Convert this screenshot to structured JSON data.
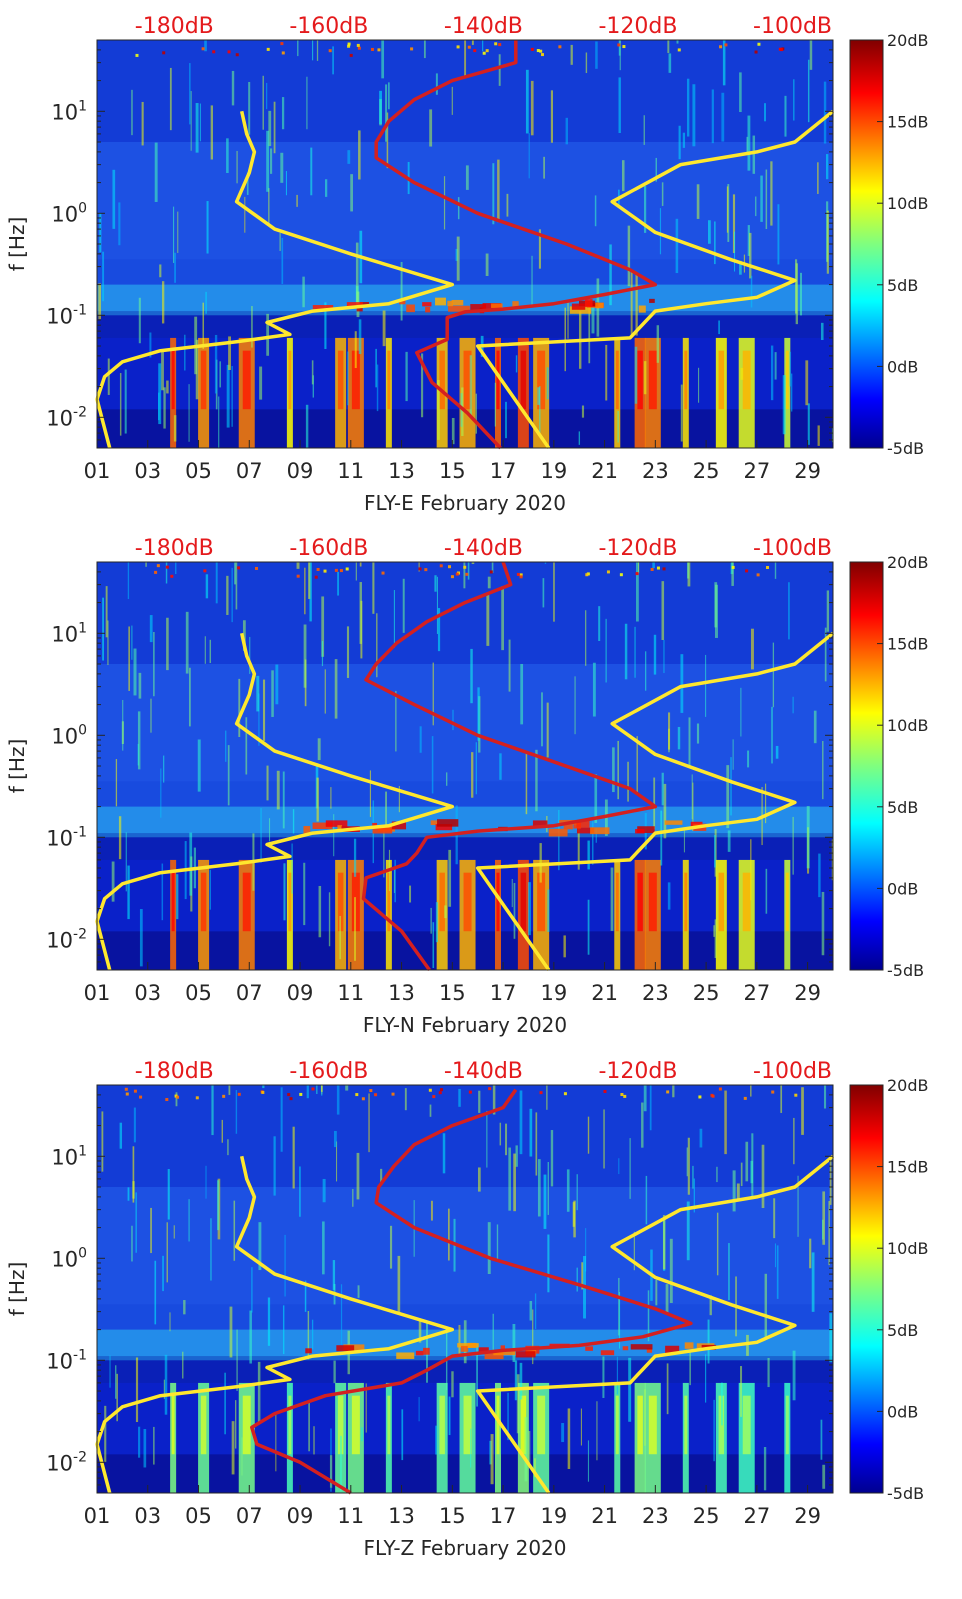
{
  "chart_data": [
    {
      "type": "heatmap",
      "title": "",
      "xlabel": "FLY-E February 2020",
      "ylabel": "f [Hz]",
      "x_ticks": [
        "01",
        "03",
        "05",
        "07",
        "09",
        "11",
        "13",
        "15",
        "17",
        "19",
        "21",
        "23",
        "25",
        "27",
        "29"
      ],
      "xlim": [
        1,
        30
      ],
      "y_ticks": [
        "10^{-2}",
        "10^{-1}",
        "10^{0}",
        "10^{1}"
      ],
      "ylim_hz": [
        0.005,
        50
      ],
      "yscale": "log",
      "top_axis_labels": [
        "-180dB",
        "-160dB",
        "-140dB",
        "-120dB",
        "-100dB"
      ],
      "colorbar": {
        "ticks": [
          "20dB",
          "15dB",
          "10dB",
          "5dB",
          "0dB",
          "-5dB"
        ],
        "range_db": [
          -5,
          20
        ],
        "colormap": "jet"
      },
      "series": [
        {
          "name": "median PSD (red)",
          "color": "#d42020",
          "points": [
            [
              16.9,
              0.005
            ],
            [
              15.6,
              0.011
            ],
            [
              14.2,
              0.022
            ],
            [
              13.6,
              0.043
            ],
            [
              14.8,
              0.058
            ],
            [
              14.8,
              0.095
            ],
            [
              15.5,
              0.108
            ],
            [
              17,
              0.115
            ],
            [
              19,
              0.13
            ],
            [
              21,
              0.16
            ],
            [
              23,
              0.2
            ],
            [
              22,
              0.28
            ],
            [
              19.5,
              0.5
            ],
            [
              16,
              1.0
            ],
            [
              13.5,
              2.0
            ],
            [
              12,
              3.5
            ],
            [
              12,
              5
            ],
            [
              12.5,
              8
            ],
            [
              13.5,
              13
            ],
            [
              15,
              20
            ],
            [
              17.5,
              30
            ],
            [
              17.5,
              50
            ]
          ]
        },
        {
          "name": "noise model (yellow, left)",
          "color": "#ffe82e",
          "points": [
            [
              1.5,
              0.005
            ],
            [
              1,
              0.015
            ],
            [
              1.3,
              0.025
            ],
            [
              2,
              0.035
            ],
            [
              3.5,
              0.045
            ],
            [
              6.5,
              0.055
            ],
            [
              8.6,
              0.065
            ],
            [
              7.7,
              0.085
            ],
            [
              9.5,
              0.11
            ],
            [
              12.5,
              0.13
            ],
            [
              15,
              0.2
            ],
            [
              11,
              0.4
            ],
            [
              8,
              0.7
            ],
            [
              6.5,
              1.3
            ],
            [
              7,
              2.5
            ],
            [
              7.2,
              4
            ],
            [
              6.9,
              6
            ],
            [
              6.7,
              10
            ]
          ]
        },
        {
          "name": "noise model (yellow, right)",
          "color": "#ffe82e",
          "points": [
            [
              18.8,
              0.005
            ],
            [
              16,
              0.05
            ],
            [
              22,
              0.06
            ],
            [
              23,
              0.11
            ],
            [
              25,
              0.13
            ],
            [
              27,
              0.15
            ],
            [
              28.5,
              0.22
            ],
            [
              26,
              0.35
            ],
            [
              23,
              0.65
            ],
            [
              21.3,
              1.3
            ],
            [
              24,
              3
            ],
            [
              27,
              4
            ],
            [
              28.5,
              5
            ],
            [
              30,
              10
            ]
          ]
        }
      ]
    },
    {
      "type": "heatmap",
      "title": "",
      "xlabel": "FLY-N February 2020",
      "ylabel": "f [Hz]",
      "x_ticks": [
        "01",
        "03",
        "05",
        "07",
        "09",
        "11",
        "13",
        "15",
        "17",
        "19",
        "21",
        "23",
        "25",
        "27",
        "29"
      ],
      "xlim": [
        1,
        30
      ],
      "y_ticks": [
        "10^{-2}",
        "10^{-1}",
        "10^{0}",
        "10^{1}"
      ],
      "ylim_hz": [
        0.005,
        50
      ],
      "yscale": "log",
      "top_axis_labels": [
        "-180dB",
        "-160dB",
        "-140dB",
        "-120dB",
        "-100dB"
      ],
      "colorbar": {
        "ticks": [
          "20dB",
          "15dB",
          "10dB",
          "5dB",
          "0dB",
          "-5dB"
        ],
        "range_db": [
          -5,
          20
        ],
        "colormap": "jet"
      },
      "series": [
        {
          "name": "median PSD (red)",
          "color": "#d42020",
          "points": [
            [
              14.1,
              0.005
            ],
            [
              13,
              0.012
            ],
            [
              11.5,
              0.025
            ],
            [
              11.6,
              0.04
            ],
            [
              13.2,
              0.055
            ],
            [
              13.6,
              0.07
            ],
            [
              14,
              0.1
            ],
            [
              16,
              0.115
            ],
            [
              19,
              0.13
            ],
            [
              21,
              0.16
            ],
            [
              23,
              0.2
            ],
            [
              22,
              0.3
            ],
            [
              19,
              0.55
            ],
            [
              16,
              1.0
            ],
            [
              13.5,
              2.0
            ],
            [
              11.6,
              3.5
            ],
            [
              12,
              5
            ],
            [
              12.8,
              8
            ],
            [
              14,
              13
            ],
            [
              15.5,
              20
            ],
            [
              17.3,
              30
            ],
            [
              17,
              50
            ]
          ]
        },
        {
          "name": "noise model (yellow, left)",
          "color": "#ffe82e",
          "points": [
            [
              1.5,
              0.005
            ],
            [
              1,
              0.015
            ],
            [
              1.3,
              0.025
            ],
            [
              2,
              0.035
            ],
            [
              3.5,
              0.045
            ],
            [
              6.5,
              0.055
            ],
            [
              8.6,
              0.065
            ],
            [
              7.7,
              0.085
            ],
            [
              9.5,
              0.11
            ],
            [
              12.5,
              0.13
            ],
            [
              15,
              0.2
            ],
            [
              11,
              0.4
            ],
            [
              8,
              0.7
            ],
            [
              6.5,
              1.3
            ],
            [
              7,
              2.5
            ],
            [
              7.2,
              4
            ],
            [
              6.9,
              6
            ],
            [
              6.7,
              10
            ]
          ]
        },
        {
          "name": "noise model (yellow, right)",
          "color": "#ffe82e",
          "points": [
            [
              18.8,
              0.005
            ],
            [
              16,
              0.05
            ],
            [
              22,
              0.06
            ],
            [
              23,
              0.11
            ],
            [
              25,
              0.13
            ],
            [
              27,
              0.15
            ],
            [
              28.5,
              0.22
            ],
            [
              26,
              0.35
            ],
            [
              23,
              0.65
            ],
            [
              21.3,
              1.3
            ],
            [
              24,
              3
            ],
            [
              27,
              4
            ],
            [
              28.5,
              5
            ],
            [
              30,
              10
            ]
          ]
        }
      ]
    },
    {
      "type": "heatmap",
      "title": "",
      "xlabel": "FLY-Z February 2020",
      "ylabel": "f [Hz]",
      "x_ticks": [
        "01",
        "03",
        "05",
        "07",
        "09",
        "11",
        "13",
        "15",
        "17",
        "19",
        "21",
        "23",
        "25",
        "27",
        "29"
      ],
      "xlim": [
        1,
        30
      ],
      "y_ticks": [
        "10^{-2}",
        "10^{-1}",
        "10^{0}",
        "10^{1}"
      ],
      "ylim_hz": [
        0.005,
        50
      ],
      "yscale": "log",
      "top_axis_labels": [
        "-180dB",
        "-160dB",
        "-140dB",
        "-120dB",
        "-100dB"
      ],
      "colorbar": {
        "ticks": [
          "20dB",
          "15dB",
          "10dB",
          "5dB",
          "0dB",
          "-5dB"
        ],
        "range_db": [
          -5,
          20
        ],
        "colormap": "jet"
      },
      "series": [
        {
          "name": "median PSD (red)",
          "color": "#d42020",
          "points": [
            [
              11,
              0.005
            ],
            [
              9,
              0.01
            ],
            [
              7.3,
              0.015
            ],
            [
              7.1,
              0.022
            ],
            [
              8,
              0.03
            ],
            [
              10,
              0.045
            ],
            [
              13,
              0.06
            ],
            [
              14,
              0.08
            ],
            [
              15,
              0.11
            ],
            [
              17,
              0.125
            ],
            [
              20,
              0.14
            ],
            [
              22.5,
              0.17
            ],
            [
              24.4,
              0.23
            ],
            [
              23,
              0.32
            ],
            [
              20,
              0.55
            ],
            [
              16.5,
              1.0
            ],
            [
              13.5,
              2.0
            ],
            [
              12,
              3.5
            ],
            [
              12.1,
              5
            ],
            [
              12.7,
              8
            ],
            [
              13.5,
              13
            ],
            [
              15,
              20
            ],
            [
              17,
              30
            ],
            [
              17.5,
              45
            ]
          ]
        },
        {
          "name": "noise model (yellow, left)",
          "color": "#ffe82e",
          "points": [
            [
              1.5,
              0.005
            ],
            [
              1,
              0.015
            ],
            [
              1.3,
              0.025
            ],
            [
              2,
              0.035
            ],
            [
              3.5,
              0.045
            ],
            [
              6.5,
              0.055
            ],
            [
              8.6,
              0.065
            ],
            [
              7.7,
              0.085
            ],
            [
              9.5,
              0.11
            ],
            [
              12.5,
              0.13
            ],
            [
              15,
              0.2
            ],
            [
              11,
              0.4
            ],
            [
              8,
              0.7
            ],
            [
              6.5,
              1.3
            ],
            [
              7,
              2.5
            ],
            [
              7.2,
              4
            ],
            [
              6.9,
              6
            ],
            [
              6.7,
              10
            ]
          ]
        },
        {
          "name": "noise model (yellow, right)",
          "color": "#ffe82e",
          "points": [
            [
              18.8,
              0.005
            ],
            [
              16,
              0.05
            ],
            [
              22,
              0.06
            ],
            [
              23,
              0.11
            ],
            [
              25,
              0.13
            ],
            [
              27,
              0.15
            ],
            [
              28.5,
              0.22
            ],
            [
              26,
              0.35
            ],
            [
              23,
              0.65
            ],
            [
              21.3,
              1.3
            ],
            [
              24,
              3
            ],
            [
              27,
              4
            ],
            [
              28.5,
              5
            ],
            [
              30,
              10
            ]
          ]
        }
      ]
    }
  ]
}
